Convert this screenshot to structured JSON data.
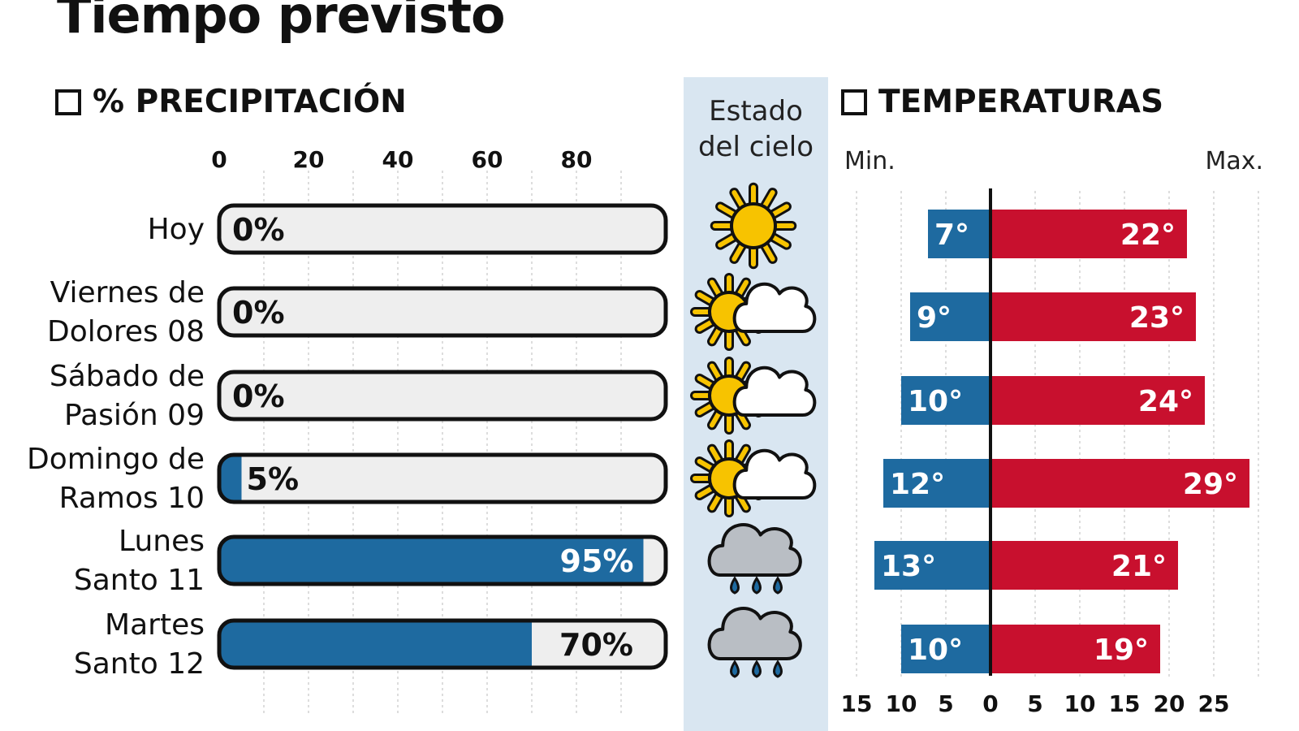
{
  "title": "Tiempo previsto",
  "precip_title": "% PRECIPITACIÓN",
  "sky_title_line1": "Estado",
  "sky_title_line2": "del cielo",
  "temp_title": "TEMPERATURAS",
  "min_label": "Min.",
  "max_label": "Max.",
  "colors": {
    "precip_fill": "#1e6aa0",
    "bar_empty": "#eeeeee",
    "temp_min": "#1e6aa0",
    "temp_max": "#c8102e",
    "sky_band": "#d9e6f1"
  },
  "chart_data": [
    {
      "type": "bar",
      "orientation": "horizontal",
      "title": "% PRECIPITACIÓN",
      "categories": [
        [
          "Hoy"
        ],
        [
          "Viernes de",
          "Dolores 08"
        ],
        [
          "Sábado de",
          "Pasión 09"
        ],
        [
          "Domingo de",
          "Ramos 10"
        ],
        [
          "Lunes",
          "Santo 11"
        ],
        [
          "Martes",
          "Santo 12"
        ]
      ],
      "values": [
        0,
        0,
        0,
        5,
        95,
        70
      ],
      "data_labels": [
        "0%",
        "0%",
        "0%",
        "5%",
        "95%",
        "70%"
      ],
      "xlim": [
        0,
        100
      ],
      "x_ticks": [
        0,
        20,
        40,
        60,
        80
      ],
      "grid": true
    },
    {
      "type": "bar",
      "orientation": "horizontal",
      "title": "TEMPERATURAS",
      "series": [
        {
          "name": "Min.",
          "values": [
            7,
            9,
            10,
            12,
            13,
            10
          ],
          "labels": [
            "7°",
            "9°",
            "10°",
            "12°",
            "13°",
            "10°"
          ]
        },
        {
          "name": "Max.",
          "values": [
            22,
            23,
            24,
            29,
            21,
            19
          ],
          "labels": [
            "22°",
            "23°",
            "24°",
            "29°",
            "21°",
            "19°"
          ]
        }
      ],
      "x_ticks": [
        "15",
        "10",
        "5",
        "0",
        "5",
        "10",
        "15",
        "20",
        "25"
      ],
      "grid": true
    }
  ],
  "sky": [
    "sun",
    "sun-cloud",
    "sun-cloud",
    "sun-cloud",
    "rain-cloud",
    "rain-cloud"
  ]
}
